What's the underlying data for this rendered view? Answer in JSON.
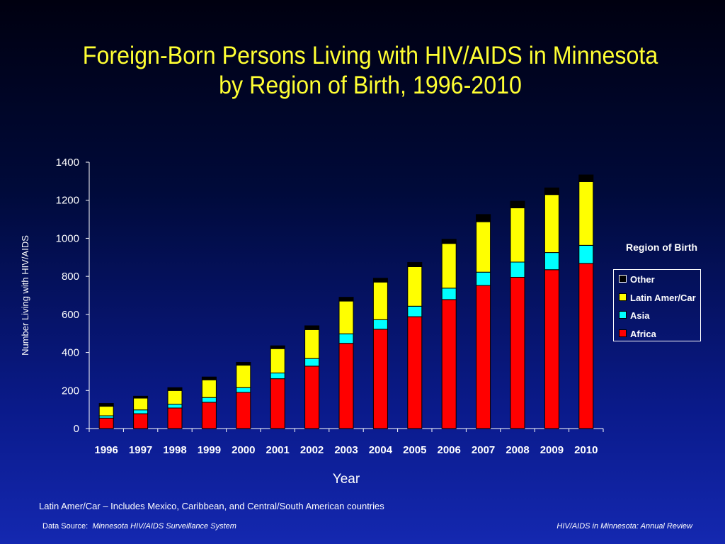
{
  "title": {
    "line1": "Foreign-Born Persons Living with HIV/AIDS in Minnesota",
    "line2": "by Region of Birth, 1996-2010"
  },
  "legend": {
    "title": "Region of Birth"
  },
  "footnote": "Latin Amer/Car – Includes Mexico, Caribbean, and Central/South American countries",
  "source": {
    "label": "Data Source:",
    "name": "Minnesota HIV/AIDS Surveillance System",
    "right": "HIV/AIDS in Minnesota: Annual Review"
  },
  "chart_data": {
    "type": "bar",
    "stacked": true,
    "xlabel": "Year",
    "ylabel": "Number Living with HIV/AIDS",
    "ylim": [
      0,
      1400
    ],
    "yticks": [
      0,
      200,
      400,
      600,
      800,
      1000,
      1200,
      1400
    ],
    "grid": false,
    "legend_position": "right",
    "categories": [
      "1996",
      "1997",
      "1998",
      "1999",
      "2000",
      "2001",
      "2002",
      "2003",
      "2004",
      "2005",
      "2006",
      "2007",
      "2008",
      "2009",
      "2010"
    ],
    "series": [
      {
        "name": "Africa",
        "color": "#ff0000",
        "values": [
          55,
          78,
          108,
          138,
          190,
          262,
          328,
          448,
          522,
          588,
          678,
          752,
          795,
          835,
          868
        ]
      },
      {
        "name": "Asia",
        "color": "#00ffff",
        "values": [
          12,
          20,
          20,
          25,
          25,
          30,
          40,
          50,
          50,
          55,
          60,
          70,
          80,
          90,
          95
        ]
      },
      {
        "name": "Latin Amer/Car",
        "color": "#ffff00",
        "values": [
          50,
          62,
          72,
          93,
          118,
          128,
          152,
          172,
          198,
          208,
          235,
          265,
          285,
          305,
          335
        ]
      },
      {
        "name": "Other",
        "color": "#000000",
        "values": [
          15,
          10,
          15,
          15,
          15,
          15,
          20,
          20,
          20,
          22,
          22,
          38,
          35,
          35,
          35
        ]
      }
    ]
  }
}
